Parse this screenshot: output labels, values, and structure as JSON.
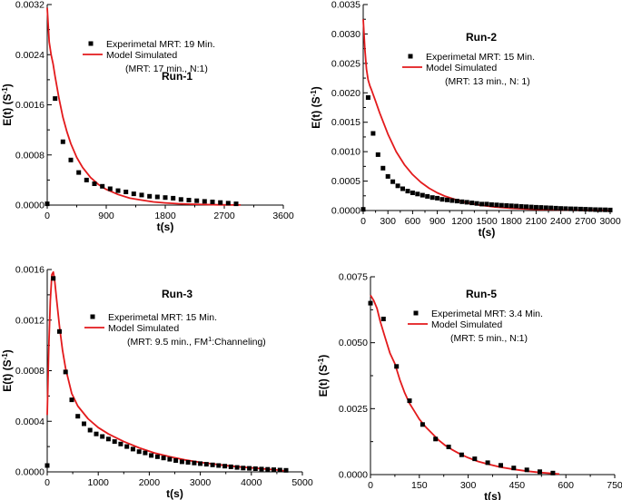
{
  "chart_data": [
    {
      "type": "scatter",
      "title": "Run-1",
      "xlabel": "t(s)",
      "ylabel": "E(t) (S",
      "ylabel_sup": "-1",
      "ylabel_end": ")",
      "xlim": [
        0,
        3600
      ],
      "ylim": [
        0,
        0.0032
      ],
      "xticks": [
        0,
        900,
        1800,
        2700,
        3600
      ],
      "xtick_labels": [
        "0",
        "900",
        "1800",
        "2700",
        "3600"
      ],
      "yticks": [
        0,
        0.0008,
        0.0016,
        0.0024,
        0.0032
      ],
      "ytick_labels": [
        "0.0000",
        "0.0008",
        "0.0016",
        "0.0024",
        "0.0032"
      ],
      "legend": {
        "position": "top-right",
        "experimental": "Experimetal MRT: 19 Min.",
        "model": "Model Simulated",
        "note": "(MRT: 17 min., N:1)"
      },
      "series": [
        {
          "name": "Experimetal MRT: 19 Min.",
          "kind": "points",
          "x": [
            0,
            120,
            240,
            360,
            480,
            600,
            720,
            840,
            960,
            1080,
            1200,
            1320,
            1440,
            1560,
            1680,
            1800,
            1920,
            2040,
            2160,
            2280,
            2400,
            2520,
            2640,
            2760,
            2880
          ],
          "y": [
            2e-05,
            0.0017,
            0.00101,
            0.00072,
            0.00052,
            0.0004,
            0.00034,
            0.0003,
            0.00026,
            0.00023,
            0.00021,
            0.00018,
            0.00016,
            0.00014,
            0.00013,
            0.00012,
            0.00011,
            9e-05,
            8e-05,
            7e-05,
            6e-05,
            5e-05,
            4e-05,
            3e-05,
            2e-05
          ]
        },
        {
          "name": "Model Simulated",
          "kind": "line",
          "x": [
            0,
            30,
            60,
            90,
            120,
            180,
            240,
            300,
            360,
            450,
            540,
            660,
            780,
            900,
            1080,
            1260,
            1440,
            1620,
            1800,
            2000,
            2200,
            2400,
            2600,
            2800,
            2950
          ],
          "y": [
            0.00315,
            0.0026,
            0.0024,
            0.00225,
            0.00205,
            0.0017,
            0.0014,
            0.00117,
            0.00098,
            0.00076,
            0.0006,
            0.00044,
            0.00033,
            0.00025,
            0.00017,
            0.00011,
            8e-05,
            5e-05,
            3.5e-05,
            2.2e-05,
            1.4e-05,
            9e-06,
            5e-06,
            3e-06,
            2e-06
          ]
        }
      ]
    },
    {
      "type": "scatter",
      "title": "Run-2",
      "xlabel": "t(s)",
      "ylabel": "E(t) (S",
      "ylabel_sup": "-1",
      "ylabel_end": ")",
      "xlim": [
        0,
        3000
      ],
      "ylim": [
        0,
        0.0035
      ],
      "xticks": [
        0,
        300,
        600,
        900,
        1200,
        1500,
        1800,
        2100,
        2400,
        2700,
        3000
      ],
      "xtick_labels": [
        "0",
        "300",
        "600",
        "900",
        "1200",
        "1500",
        "1800",
        "2100",
        "2400",
        "2700",
        "3000"
      ],
      "minor_xticks": [
        150,
        450,
        750,
        1050,
        1350,
        1650,
        1950,
        2250,
        2550,
        2850
      ],
      "yticks": [
        0,
        0.0005,
        0.001,
        0.0015,
        0.002,
        0.0025,
        0.003,
        0.0035
      ],
      "ytick_labels": [
        "0.0000",
        "0.0005",
        "0.0010",
        "0.0015",
        "0.0020",
        "0.0025",
        "0.0030",
        "0.0035"
      ],
      "legend": {
        "position": "top-right",
        "experimental": "Experimetal MRT: 15 Min.",
        "model": "Model Simulated",
        "note": "(MRT: 13 min., N: 1)"
      },
      "series": [
        {
          "name": "Experimetal MRT: 15 Min.",
          "kind": "points",
          "x": [
            0,
            60,
            120,
            180,
            240,
            300,
            360,
            420,
            480,
            540,
            600,
            660,
            720,
            780,
            840,
            900,
            960,
            1020,
            1080,
            1140,
            1200,
            1260,
            1320,
            1380,
            1440,
            1500,
            1560,
            1620,
            1680,
            1740,
            1800,
            1860,
            1920,
            1980,
            2040,
            2100,
            2160,
            2220,
            2280,
            2340,
            2400,
            2460,
            2520,
            2580,
            2640,
            2700,
            2760,
            2820,
            2880,
            2940,
            3000
          ],
          "y": [
            2e-05,
            0.00192,
            0.00131,
            0.00095,
            0.00072,
            0.00058,
            0.00049,
            0.00042,
            0.00037,
            0.00033,
            0.0003,
            0.00028,
            0.00026,
            0.00024,
            0.00022,
            0.00021,
            0.00019,
            0.00018,
            0.00017,
            0.00016,
            0.00015,
            0.00014,
            0.00013,
            0.00012,
            0.00011,
            0.00011,
            0.0001,
            9.5e-05,
            9e-05,
            8.5e-05,
            8e-05,
            7.5e-05,
            7e-05,
            6.5e-05,
            6e-05,
            5.6e-05,
            5.2e-05,
            4.8e-05,
            4.4e-05,
            4e-05,
            3.6e-05,
            3.3e-05,
            3e-05,
            2.7e-05,
            2.4e-05,
            2.1e-05,
            1.8e-05,
            1.6e-05,
            1.4e-05,
            1.2e-05,
            1e-05
          ]
        },
        {
          "name": "Model Simulated",
          "kind": "line",
          "x": [
            0,
            20,
            40,
            60,
            80,
            100,
            150,
            200,
            300,
            400,
            500,
            600,
            700,
            800,
            900,
            1000,
            1200,
            1400,
            1600,
            1800,
            2000,
            2200,
            2400,
            2600,
            2800,
            3000
          ],
          "y": [
            0.00325,
            0.00275,
            0.0024,
            0.00222,
            0.00212,
            0.00205,
            0.00186,
            0.00166,
            0.0013,
            0.001,
            0.00078,
            0.00061,
            0.00048,
            0.00038,
            0.0003,
            0.00024,
            0.00015,
            9.5e-05,
            6e-05,
            3.8e-05,
            2.4e-05,
            1.5e-05,
            1e-05,
            6e-06,
            4e-06,
            2e-06
          ]
        }
      ]
    },
    {
      "type": "scatter",
      "title": "Run-3",
      "xlabel": "t(s)",
      "ylabel": "E(t) (S",
      "ylabel_sup": "-1",
      "ylabel_end": ")",
      "xlim": [
        0,
        5000
      ],
      "ylim": [
        0,
        0.0016
      ],
      "xticks": [
        0,
        1000,
        2000,
        3000,
        4000,
        5000
      ],
      "xtick_labels": [
        "0",
        "1000",
        "2000",
        "3000",
        "4000",
        "5000"
      ],
      "minor_xticks": [
        500,
        1500,
        2500,
        3500,
        4500
      ],
      "yticks": [
        0,
        0.0004,
        0.0008,
        0.0012,
        0.0016
      ],
      "ytick_labels": [
        "0.0000",
        "0.0004",
        "0.0008",
        "0.0012",
        "0.0016"
      ],
      "legend": {
        "position": "top-right",
        "experimental": "Experimetal MRT: 15 Min.",
        "model": "Model Simulated",
        "note_prefix": "(MRT: 9.5 min., FM",
        "note_sup": "1",
        "note_suffix": ":Channeling)"
      },
      "series": [
        {
          "name": "Experimetal MRT: 15 Min.",
          "kind": "points",
          "x": [
            0,
            120,
            240,
            360,
            480,
            600,
            720,
            840,
            960,
            1080,
            1200,
            1320,
            1440,
            1560,
            1680,
            1800,
            1920,
            2040,
            2160,
            2280,
            2400,
            2520,
            2640,
            2760,
            2880,
            3000,
            3120,
            3240,
            3360,
            3480,
            3600,
            3720,
            3840,
            3960,
            4080,
            4200,
            4320,
            4440,
            4560,
            4680
          ],
          "y": [
            5e-05,
            0.00153,
            0.00111,
            0.00079,
            0.00057,
            0.00044,
            0.00038,
            0.00033,
            0.0003,
            0.00028,
            0.00026,
            0.00024,
            0.00022,
            0.0002,
            0.00018,
            0.00016,
            0.00015,
            0.00013,
            0.00012,
            0.00011,
            0.0001,
            9e-05,
            8e-05,
            7.5e-05,
            7e-05,
            6.5e-05,
            6e-05,
            5.5e-05,
            5e-05,
            4.5e-05,
            4e-05,
            3.5e-05,
            3e-05,
            2.8e-05,
            2.5e-05,
            2.2e-05,
            2e-05,
            1.7e-05,
            1.4e-05,
            1.2e-05
          ]
        },
        {
          "name": "Model Simulated",
          "kind": "line",
          "x": [
            0,
            30,
            60,
            90,
            120,
            150,
            180,
            240,
            300,
            360,
            480,
            600,
            800,
            1000,
            1200,
            1500,
            1800,
            2100,
            2400,
            2700,
            3000,
            3300,
            3600,
            3900,
            4200,
            4500,
            4700
          ],
          "y": [
            0.00045,
            0.00098,
            0.00135,
            0.00156,
            0.00158,
            0.0015,
            0.00138,
            0.00115,
            0.00096,
            0.00082,
            0.00062,
            0.00052,
            0.00042,
            0.00035,
            0.0003,
            0.00024,
            0.00019,
            0.00015,
            0.00012,
            9.5e-05,
            7.5e-05,
            6e-05,
            4.5e-05,
            3.5e-05,
            2.5e-05,
            1.5e-05,
            5e-06
          ]
        }
      ]
    },
    {
      "type": "scatter",
      "title": "Run-5",
      "xlabel": "t(s)",
      "ylabel": "E(t) (S",
      "ylabel_sup": "-1",
      "ylabel_end": ")",
      "xlim": [
        0,
        750
      ],
      "ylim": [
        0,
        0.0075
      ],
      "xticks": [
        0,
        150,
        300,
        450,
        600,
        750
      ],
      "xtick_labels": [
        "0",
        "150",
        "300",
        "450",
        "600",
        "750"
      ],
      "minor_xticks": [
        75,
        225,
        375,
        525,
        675
      ],
      "yticks": [
        0,
        0.0025,
        0.005,
        0.0075
      ],
      "ytick_labels": [
        "0.0000",
        "0.0025",
        "0.0050",
        "0.0075"
      ],
      "legend": {
        "position": "top-right",
        "experimental": "Experimetal MRT: 3.4 Min.",
        "model": "Model Simulated",
        "note": "(MRT: 5 min., N:1)"
      },
      "series": [
        {
          "name": "Experimetal MRT: 3.4 Min.",
          "kind": "points",
          "x": [
            0,
            40,
            80,
            120,
            160,
            200,
            240,
            280,
            320,
            360,
            400,
            440,
            480,
            520,
            560
          ],
          "y": [
            0.0065,
            0.0059,
            0.0041,
            0.0028,
            0.0019,
            0.00135,
            0.00105,
            0.00075,
            0.0006,
            0.00045,
            0.00035,
            0.00025,
            0.00018,
            0.00011,
            6e-05
          ]
        },
        {
          "name": "Model Simulated",
          "kind": "line",
          "x": [
            0,
            10,
            20,
            30,
            45,
            60,
            75,
            90,
            105,
            120,
            135,
            150,
            170,
            190,
            210,
            230,
            250,
            275,
            300,
            330,
            360,
            400,
            440,
            480,
            520,
            560,
            580
          ],
          "y": [
            0.0068,
            0.0066,
            0.0063,
            0.0058,
            0.0052,
            0.0046,
            0.0042,
            0.0036,
            0.0031,
            0.0027,
            0.0024,
            0.0021,
            0.0018,
            0.00155,
            0.0013,
            0.0011,
            0.00095,
            0.00078,
            0.00064,
            0.0005,
            0.0004,
            0.00028,
            0.0002,
            0.00013,
            8e-05,
            4e-05,
            2e-05
          ]
        }
      ]
    }
  ]
}
